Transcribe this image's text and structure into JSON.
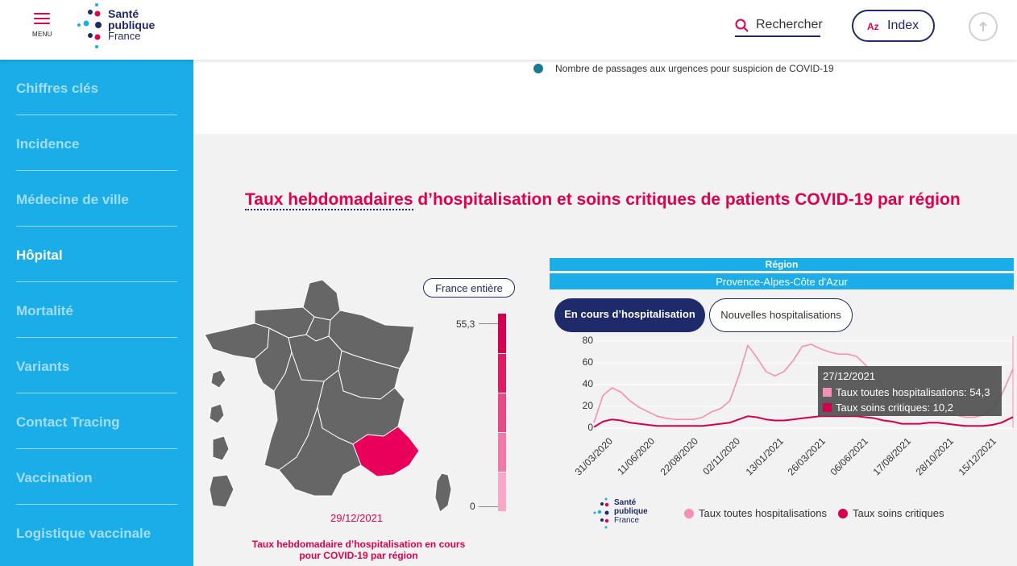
{
  "header": {
    "menu_label": "MENU",
    "logo": {
      "line1": "Santé",
      "line2": "publique",
      "line3": "France"
    },
    "search_label": "Rechercher",
    "index_az": "Az",
    "index_label": "Index"
  },
  "sidebar": {
    "items": [
      {
        "label": "Chiffres clés",
        "active": false
      },
      {
        "label": "Incidence",
        "active": false
      },
      {
        "label": "Médecine de ville",
        "active": false
      },
      {
        "label": "Hôpital",
        "active": true
      },
      {
        "label": "Mortalité",
        "active": false
      },
      {
        "label": "Variants",
        "active": false
      },
      {
        "label": "Contact Tracing",
        "active": false
      },
      {
        "label": "Vaccination",
        "active": false
      },
      {
        "label": "Logistique vaccinale",
        "active": false
      }
    ]
  },
  "top_legend": {
    "item": "Nombre de passages aux urgences pour suspicion de COVID-19",
    "color": "#1a7a94"
  },
  "section": {
    "title_underlined": "Taux hebdomadaires",
    "title_rest": " d’hospitalisation et soins critiques de patients COVID-19 par région"
  },
  "map": {
    "button": "France entière",
    "scale_max": "55,3",
    "scale_min": "0",
    "date": "29/12/2021",
    "caption": "Taux hebdomadaire d’hospitalisation en cours pour COVID-19 par région",
    "highlight_color": "#e8005a",
    "base_color": "#666666"
  },
  "region": {
    "header": "Région",
    "selected": "Provence-Alpes-Côte d'Azur"
  },
  "tabs": {
    "active": "En cours d’hospitalisation",
    "inactive": "Nouvelles hospitalisations"
  },
  "tooltip": {
    "date": "27/12/2021",
    "row1": "Taux toutes hospitalisations: 54,3",
    "row2": "Taux soins critiques: 10,2"
  },
  "chart_legend": {
    "logo": {
      "line1": "Santé",
      "line2": "publique",
      "line3": "France"
    }
  },
  "chart_data": {
    "type": "line",
    "ylim": [
      0,
      80
    ],
    "yticks": [
      "0",
      "20",
      "40",
      "60",
      "80"
    ],
    "xticks": [
      "31/03/2020",
      "11/06/2020",
      "22/08/2020",
      "02/11/2020",
      "13/01/2021",
      "26/03/2021",
      "06/06/2021",
      "17/08/2021",
      "28/10/2021",
      "15/12/2021"
    ],
    "x": [
      "2020-03-19",
      "2020-04-02",
      "2020-04-16",
      "2020-04-30",
      "2020-05-14",
      "2020-05-28",
      "2020-06-11",
      "2020-06-25",
      "2020-07-09",
      "2020-07-23",
      "2020-08-06",
      "2020-08-20",
      "2020-09-03",
      "2020-09-17",
      "2020-10-01",
      "2020-10-15",
      "2020-10-29",
      "2020-11-12",
      "2020-11-26",
      "2020-12-10",
      "2020-12-24",
      "2021-01-07",
      "2021-01-21",
      "2021-02-04",
      "2021-02-18",
      "2021-03-04",
      "2021-03-18",
      "2021-04-01",
      "2021-04-15",
      "2021-04-29",
      "2021-05-13",
      "2021-05-27",
      "2021-06-10",
      "2021-06-24",
      "2021-07-08",
      "2021-07-22",
      "2021-08-05",
      "2021-08-19",
      "2021-09-02",
      "2021-09-16",
      "2021-09-30",
      "2021-10-14",
      "2021-10-28",
      "2021-11-11",
      "2021-11-25",
      "2021-12-09",
      "2021-12-27"
    ],
    "series": [
      {
        "name": "Taux toutes hospitalisations",
        "color": "#f48fb6",
        "values": [
          5,
          30,
          37,
          33,
          25,
          19,
          15,
          11,
          9,
          8,
          8,
          8,
          10,
          15,
          18,
          25,
          48,
          76,
          65,
          52,
          48,
          52,
          62,
          75,
          77,
          73,
          70,
          68,
          68,
          66,
          58,
          47,
          38,
          28,
          20,
          18,
          20,
          22,
          22,
          16,
          12,
          10,
          10,
          12,
          18,
          30,
          54.3
        ]
      },
      {
        "name": "Taux soins critiques",
        "color": "#d4004f",
        "values": [
          1,
          6,
          8,
          7,
          5,
          4,
          3,
          2,
          2,
          2,
          2,
          2,
          2,
          3,
          4,
          5,
          8,
          11,
          10,
          8,
          7,
          7,
          8,
          9,
          10,
          11,
          11,
          11,
          11,
          11,
          10,
          9,
          7,
          6,
          4,
          4,
          4,
          5,
          5,
          4,
          3,
          2,
          2,
          2,
          3,
          5,
          10.2
        ]
      }
    ]
  }
}
